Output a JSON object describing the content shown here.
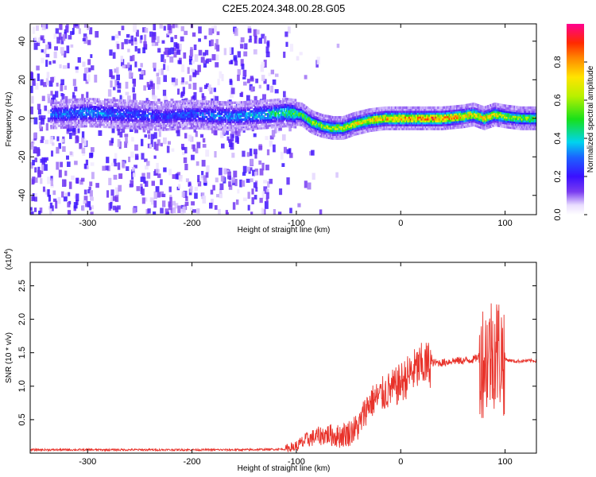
{
  "title": "C2E5.2024.348.00.28.G05",
  "chart_data": [
    {
      "type": "heatmap",
      "xlabel": "Height of straight line (km)",
      "ylabel": "Frequency (Hz)",
      "xlim": [
        -355,
        130
      ],
      "ylim": [
        -50,
        49
      ],
      "xticks": [
        -300,
        -200,
        -100,
        0,
        100
      ],
      "yticks": [
        -40,
        -20,
        0,
        20,
        40
      ],
      "colorbar": {
        "label": "Normalized spectral amplitude",
        "range": [
          0,
          1
        ],
        "ticks": [
          0.0,
          0.2,
          0.4,
          0.6,
          0.8
        ]
      },
      "ridge": {
        "x": [
          -330,
          -300,
          -260,
          -230,
          -200,
          -160,
          -130,
          -110,
          -95,
          -85,
          -75,
          -65,
          -55,
          -45,
          -30,
          -15,
          0,
          20,
          40,
          60,
          70,
          80,
          90,
          100,
          115,
          130
        ],
        "freq": [
          2,
          3,
          2,
          1,
          2,
          1,
          2,
          3,
          2,
          -2,
          -4,
          -5,
          -5,
          -3,
          -1,
          0,
          0,
          0,
          0,
          1,
          2,
          0,
          2,
          1,
          0,
          0
        ],
        "amplitude": [
          0.3,
          0.35,
          0.3,
          0.25,
          0.3,
          0.35,
          0.4,
          0.5,
          0.55,
          0.6,
          0.6,
          0.62,
          0.65,
          0.7,
          0.75,
          0.8,
          0.85,
          0.85,
          0.85,
          0.8,
          0.7,
          0.75,
          0.7,
          0.65,
          0.6,
          0.6
        ]
      }
    },
    {
      "type": "line",
      "xlabel": "Height of straight line (km)",
      "ylabel": "SNR (10 * v/v)",
      "y_multiplier": "x10^4",
      "xlim": [
        -355,
        130
      ],
      "ylim": [
        0,
        2.85
      ],
      "xticks": [
        -300,
        -200,
        -100,
        0,
        100
      ],
      "yticks": [
        0.5,
        1.0,
        1.5,
        2.0,
        2.5
      ],
      "color": "#e8322a",
      "series": [
        {
          "values": [
            [
              -355,
              0.05
            ],
            [
              -300,
              0.05
            ],
            [
              -250,
              0.05
            ],
            [
              -200,
              0.05
            ],
            [
              -150,
              0.05
            ],
            [
              -110,
              0.06
            ],
            [
              -100,
              0.1
            ],
            [
              -90,
              0.2
            ],
            [
              -80,
              0.25
            ],
            [
              -70,
              0.28
            ],
            [
              -60,
              0.25
            ],
            [
              -50,
              0.3
            ],
            [
              -40,
              0.4
            ],
            [
              -35,
              0.6
            ],
            [
              -30,
              0.75
            ],
            [
              -25,
              0.8
            ],
            [
              -20,
              0.85
            ],
            [
              -15,
              0.9
            ],
            [
              -10,
              0.95
            ],
            [
              -5,
              0.98
            ],
            [
              0,
              1.05
            ],
            [
              5,
              1.12
            ],
            [
              10,
              1.2
            ],
            [
              15,
              1.25
            ],
            [
              20,
              1.3
            ],
            [
              25,
              1.32
            ],
            [
              30,
              1.35
            ],
            [
              40,
              1.35
            ],
            [
              50,
              1.38
            ],
            [
              60,
              1.38
            ],
            [
              70,
              1.4
            ],
            [
              75,
              1.45
            ],
            [
              80,
              1.4
            ],
            [
              85,
              1.5
            ],
            [
              90,
              1.55
            ],
            [
              95,
              1.5
            ],
            [
              100,
              1.4
            ],
            [
              110,
              1.37
            ],
            [
              120,
              1.38
            ],
            [
              130,
              1.38
            ]
          ]
        }
      ]
    }
  ]
}
